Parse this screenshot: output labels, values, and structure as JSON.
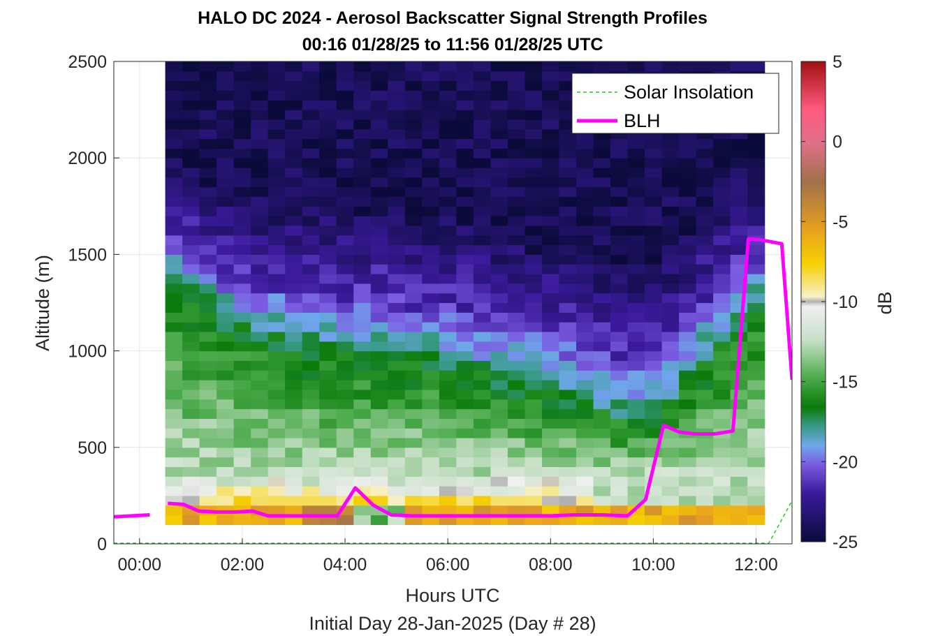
{
  "chart_data": {
    "type": "heatmap",
    "title": "HALO DC 2024 - Aerosol Backscatter Signal Strength Profiles",
    "subtitle": "00:16 01/28/25 to 11:56 01/28/25  UTC",
    "xlabel": "Hours UTC",
    "xlabel2": "Initial Day 28-Jan-2025 (Day # 28)",
    "ylabel": "Altitude (m)",
    "colorbar_label": "dB",
    "xlim": [
      -0.5,
      12.7
    ],
    "ylim": [
      0,
      2500
    ],
    "clim": [
      -25,
      5
    ],
    "x_ticks": [
      0,
      2,
      4,
      6,
      8,
      10,
      12
    ],
    "x_tick_labels": [
      "00:00",
      "02:00",
      "04:00",
      "06:00",
      "08:00",
      "10:00",
      "12:00"
    ],
    "y_ticks": [
      0,
      500,
      1000,
      1500,
      2000,
      2500
    ],
    "y_tick_labels": [
      "0",
      "500",
      "1000",
      "1500",
      "2000",
      "2500"
    ],
    "colorbar_ticks": [
      5,
      0,
      -5,
      -10,
      -15,
      -20,
      -25
    ],
    "colorbar_tick_labels": [
      "5",
      "0",
      "-5",
      "-10",
      "-15",
      "-20",
      "-25"
    ],
    "grid": true,
    "legend_position": "top-right",
    "heatmap": {
      "x_start_hours": 0.5,
      "x_step_hours": 0.3333,
      "columns": 35,
      "alt_start_m": 100,
      "alt_step_m": 50,
      "rows": 48,
      "description_of_values": "backscatter signal strength in dB per time/altitude bin",
      "top_layer_m": [
        1500,
        1450,
        1400,
        1350,
        1330,
        1300,
        1300,
        1290,
        1270,
        1260,
        1250,
        1240,
        1230,
        1220,
        1200,
        1200,
        1180,
        1160,
        1150,
        1130,
        1100,
        1080,
        1050,
        1020,
        1000,
        980,
        950,
        930,
        950,
        1000,
        1100,
        1200,
        1300,
        1400,
        1450
      ],
      "green_top_m": [
        1380,
        1320,
        1250,
        1180,
        1130,
        1090,
        1060,
        1040,
        1020,
        1000,
        990,
        980,
        970,
        960,
        950,
        930,
        910,
        890,
        870,
        850,
        830,
        800,
        780,
        760,
        720,
        680,
        650,
        620,
        660,
        750,
        850,
        950,
        1050,
        1150,
        1250
      ]
    },
    "series": [
      {
        "name": "Solar Insolation",
        "color": "#22cc22",
        "style": "dashed",
        "x": [
          -0.5,
          12.25,
          12.7
        ],
        "y": [
          0,
          0,
          220
        ]
      },
      {
        "name": "BLH",
        "color": "#ff00ff",
        "style": "solid",
        "segments": [
          {
            "x": [
              -0.5,
              0.2
            ],
            "y": [
              140,
              150
            ]
          },
          {
            "x": [
              0.55,
              0.85,
              1.15,
              1.5,
              1.9,
              2.2,
              2.5,
              2.8,
              3.2,
              3.5,
              3.85,
              4.2,
              4.55,
              4.9,
              5.3,
              6.0,
              7.0,
              8.0,
              8.5,
              9.0,
              9.5,
              9.85,
              10.2,
              10.5,
              10.8,
              11.2,
              11.55,
              11.85,
              12.1,
              12.5,
              12.7
            ],
            "y": [
              210,
              205,
              170,
              165,
              165,
              170,
              145,
              145,
              145,
              145,
              145,
              290,
              200,
              150,
              145,
              145,
              145,
              145,
              150,
              150,
              145,
              230,
              615,
              580,
              570,
              570,
              585,
              1580,
              1575,
              1555,
              850
            ]
          }
        ]
      }
    ]
  },
  "colors": {
    "blh": "#ff00ff",
    "solar": "#22cc22",
    "grid": "#e6e6e6",
    "axis": "#262626"
  }
}
